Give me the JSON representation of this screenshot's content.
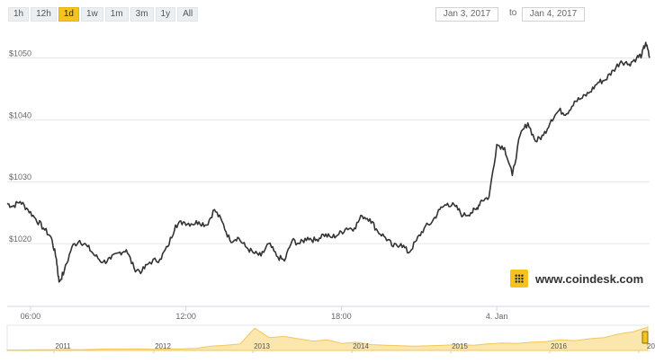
{
  "range_buttons": [
    {
      "label": "1h",
      "active": false
    },
    {
      "label": "12h",
      "active": false
    },
    {
      "label": "1d",
      "active": true
    },
    {
      "label": "1w",
      "active": false
    },
    {
      "label": "1m",
      "active": false
    },
    {
      "label": "3m",
      "active": false
    },
    {
      "label": "1y",
      "active": false
    },
    {
      "label": "All",
      "active": false
    }
  ],
  "date_from": "Jan 3, 2017",
  "date_to_label": "to",
  "date_to": "Jan 4, 2017",
  "brand": {
    "text": "www.coindesk.com",
    "icon": "coindesk-logo-icon"
  },
  "colors": {
    "line": "#333333",
    "active_button": "#f6c21e",
    "navigator_fill": "#fbe6ad"
  },
  "chart_data": {
    "type": "line",
    "title": "",
    "xlabel": "",
    "ylabel": "",
    "x_unit": "hour",
    "ylim": [
      1010,
      1055
    ],
    "yticks": [
      {
        "value": 1020,
        "label": "$1020"
      },
      {
        "value": 1030,
        "label": "$1030"
      },
      {
        "value": 1040,
        "label": "$1040"
      },
      {
        "value": 1050,
        "label": "$1050"
      }
    ],
    "xticks": [
      {
        "value": 6,
        "label": "06:00"
      },
      {
        "value": 12,
        "label": "12:00"
      },
      {
        "value": 18,
        "label": "18:00"
      },
      {
        "value": 24,
        "label": "4. Jan"
      }
    ],
    "xlim": [
      5.1,
      29.9
    ],
    "grid": true,
    "series": [
      {
        "x": [
          5.1,
          5.3,
          5.6,
          5.9,
          6.2,
          6.5,
          6.8,
          7.0,
          7.1,
          7.3,
          7.6,
          7.9,
          8.2,
          8.5,
          8.8,
          9.1,
          9.4,
          9.7,
          10.0,
          10.3,
          10.6,
          11.0,
          11.3,
          11.6,
          11.9,
          12.2,
          12.5,
          12.8,
          13.1,
          13.4,
          13.7,
          14.0,
          14.3,
          14.6,
          14.9,
          15.2,
          15.5,
          15.8,
          16.1,
          16.4,
          16.7,
          17.0,
          17.3,
          17.6,
          17.9,
          18.2,
          18.5,
          18.8,
          19.1,
          19.4,
          19.7,
          20.0,
          20.3,
          20.6,
          20.9,
          21.2,
          21.5,
          21.8,
          22.1,
          22.4,
          22.7,
          23.0,
          23.2,
          23.4,
          23.7,
          24.0,
          24.3,
          24.6,
          24.9,
          25.2,
          25.5,
          25.8,
          26.1,
          26.4,
          26.7,
          27.0,
          27.3,
          27.6,
          27.9,
          28.2,
          28.5,
          28.8,
          29.1,
          29.4,
          29.6,
          29.75,
          29.9
        ],
        "y": [
          1026.5,
          1026.0,
          1026.8,
          1025.5,
          1024.0,
          1022.5,
          1021.0,
          1017.5,
          1013.8,
          1015.5,
          1019.5,
          1020.5,
          1019.5,
          1018.0,
          1017.0,
          1017.5,
          1018.5,
          1019.0,
          1016.0,
          1015.5,
          1017.0,
          1017.5,
          1019.5,
          1023.0,
          1023.5,
          1023.2,
          1023.5,
          1023.0,
          1025.5,
          1023.5,
          1020.5,
          1021.0,
          1019.5,
          1018.5,
          1018.0,
          1020.0,
          1018.0,
          1017.2,
          1020.5,
          1020.0,
          1021.0,
          1020.5,
          1021.5,
          1021.0,
          1021.5,
          1022.5,
          1022.5,
          1024.5,
          1024.0,
          1022.0,
          1021.0,
          1019.5,
          1020.0,
          1018.5,
          1020.5,
          1022.5,
          1023.5,
          1025.5,
          1026.5,
          1026.0,
          1024.5,
          1025.0,
          1025.5,
          1027.0,
          1027.5,
          1036.0,
          1035.5,
          1031.0,
          1037.5,
          1039.5,
          1036.5,
          1037.5,
          1040.0,
          1041.5,
          1041.0,
          1043.0,
          1043.5,
          1044.5,
          1046.0,
          1046.5,
          1048.0,
          1049.5,
          1049.0,
          1050.0,
          1050.5,
          1052.5,
          1050.0
        ]
      }
    ]
  },
  "navigator": {
    "year_labels": [
      "2011",
      "2012",
      "2013",
      "2014",
      "2015",
      "2016",
      "20"
    ],
    "area": [
      0.02,
      0.02,
      0.03,
      0.03,
      0.04,
      0.03,
      0.05,
      0.06,
      0.06,
      0.07,
      0.05,
      0.06,
      0.07,
      0.09,
      0.18,
      0.22,
      0.28,
      0.95,
      0.55,
      0.6,
      0.5,
      0.4,
      0.45,
      0.3,
      0.35,
      0.25,
      0.22,
      0.2,
      0.18,
      0.2,
      0.22,
      0.25,
      0.22,
      0.28,
      0.32,
      0.3,
      0.35,
      0.38,
      0.45,
      0.42,
      0.5,
      0.55,
      0.7,
      0.8,
      1.0
    ]
  }
}
